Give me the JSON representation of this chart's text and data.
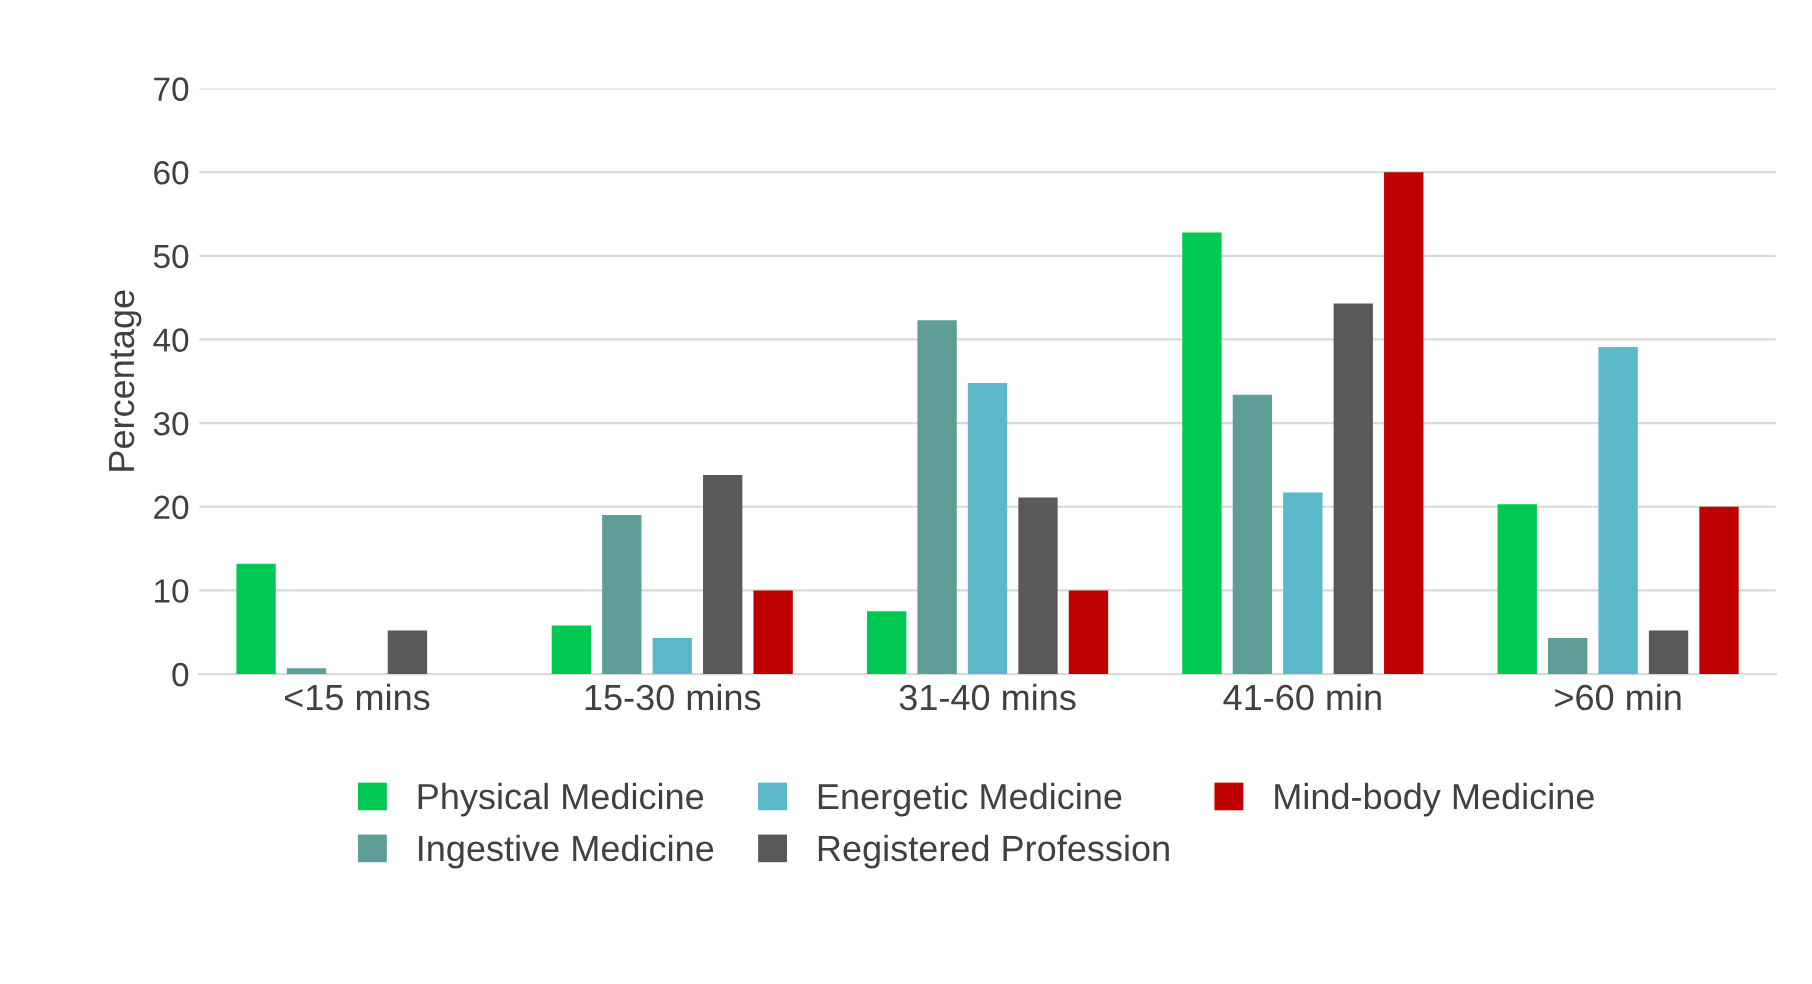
{
  "chart_data": {
    "type": "bar",
    "ylabel": "Percentage",
    "categories": [
      "<15 mins",
      "15-30 mins",
      "31-40 mins",
      "41-60 min",
      ">60 min"
    ],
    "series": [
      {
        "name": "Physical Medicine",
        "color": "#00c853",
        "values": [
          13.2,
          5.8,
          7.5,
          52.8,
          20.3
        ]
      },
      {
        "name": "Ingestive Medicine",
        "color": "#5f9e96",
        "values": [
          0.7,
          19,
          42.3,
          33.4,
          4.3
        ]
      },
      {
        "name": "Energetic Medicine",
        "color": "#5bb8c9",
        "values": [
          0,
          4.3,
          34.8,
          21.7,
          39.1
        ]
      },
      {
        "name": "Registered Profession",
        "color": "#595959",
        "values": [
          5.2,
          23.8,
          21.1,
          44.3,
          5.2
        ]
      },
      {
        "name": "Mind-body Medicine",
        "color": "#c00000",
        "values": [
          0,
          10,
          10,
          60,
          20
        ]
      }
    ],
    "ylim": [
      0,
      70
    ],
    "yticks": [
      0,
      10,
      20,
      30,
      40,
      50,
      60,
      70
    ],
    "grid": "y",
    "legend": "bottom"
  }
}
